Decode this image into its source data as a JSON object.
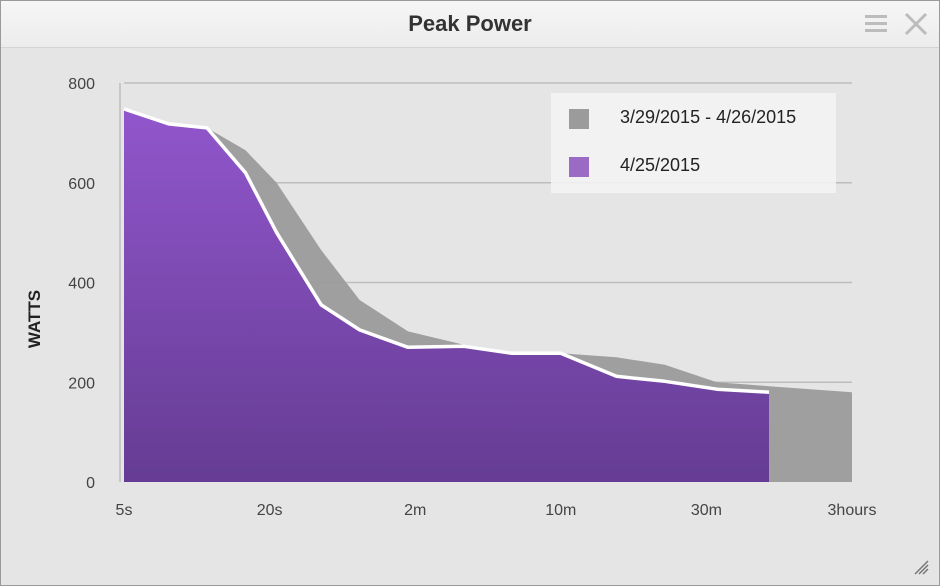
{
  "window": {
    "title": "Peak Power",
    "icons": {
      "menu": "hamburger-menu-icon",
      "close": "close-icon",
      "resize": "resize-grip-icon"
    }
  },
  "chart_data": {
    "type": "area",
    "title": "Peak Power",
    "xlabel": "",
    "ylabel": "WATTS",
    "x_log_scale": true,
    "x_tick_labels": [
      "5s",
      "20s",
      "2m",
      "10m",
      "30m",
      "3hours"
    ],
    "y_ticks": [
      0,
      200,
      400,
      600,
      800
    ],
    "ylim": [
      0,
      800
    ],
    "grid": true,
    "legend_position": "top-right",
    "series": [
      {
        "name": "3/29/2015 - 4/26/2015",
        "color": "#9b9b9b",
        "points": [
          [
            5,
            750
          ],
          [
            8,
            718
          ],
          [
            12,
            710
          ],
          [
            18,
            665
          ],
          [
            25,
            600
          ],
          [
            40,
            465
          ],
          [
            60,
            365
          ],
          [
            100,
            302
          ],
          [
            180,
            275
          ],
          [
            300,
            260
          ],
          [
            500,
            258
          ],
          [
            900,
            250
          ],
          [
            1500,
            235
          ],
          [
            2600,
            200
          ],
          [
            4500,
            192
          ],
          [
            10800,
            180
          ]
        ]
      },
      {
        "name": "4/25/2015",
        "color": "#8b56c0",
        "points": [
          [
            5,
            748
          ],
          [
            8,
            718
          ],
          [
            12,
            710
          ],
          [
            18,
            620
          ],
          [
            25,
            500
          ],
          [
            40,
            355
          ],
          [
            60,
            305
          ],
          [
            100,
            270
          ],
          [
            180,
            272
          ],
          [
            300,
            258
          ],
          [
            500,
            258
          ],
          [
            900,
            212
          ],
          [
            1500,
            202
          ],
          [
            2600,
            186
          ],
          [
            4500,
            180
          ]
        ]
      }
    ]
  }
}
